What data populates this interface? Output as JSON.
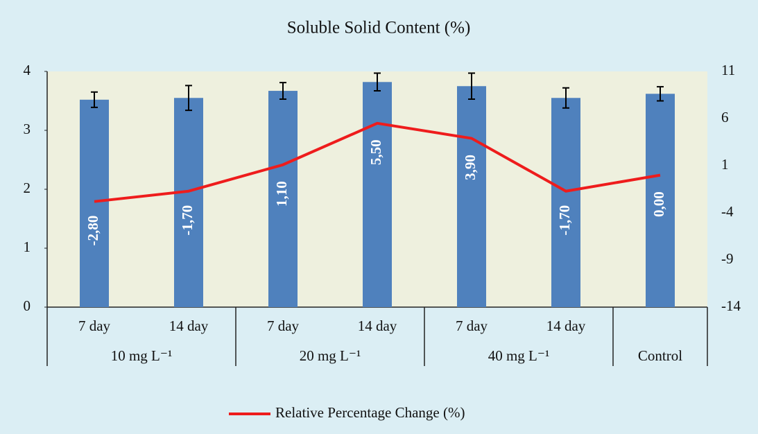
{
  "chart_data": {
    "type": "bar",
    "title": "Soluble Solid Content (%)",
    "categories": [
      "7 day",
      "14 day",
      "7 day",
      "14 day",
      "7 day",
      "14 day",
      null
    ],
    "groups": [
      {
        "label": "10 mg L⁻¹",
        "span": 2
      },
      {
        "label": "20 mg L⁻¹",
        "span": 2
      },
      {
        "label": "40 mg L⁻¹",
        "span": 2
      },
      {
        "label": "Control",
        "span": 1
      }
    ],
    "series": [
      {
        "type": "bar",
        "color": "#4f81bd",
        "values": [
          3.52,
          3.55,
          3.67,
          3.82,
          3.75,
          3.55,
          3.62
        ],
        "errors": [
          0.13,
          0.21,
          0.14,
          0.15,
          0.22,
          0.17,
          0.12
        ]
      },
      {
        "type": "line",
        "name": "Relative Percentage Change (%)",
        "color": "#ee1c1c",
        "axis": "y2",
        "values": [
          -2.8,
          -1.7,
          1.1,
          5.5,
          3.9,
          -1.7,
          0
        ],
        "value_labels": [
          "-2,80",
          "-1,70",
          "1,10",
          "5,50",
          "3,90",
          "-1,70",
          "0,00"
        ]
      }
    ],
    "ylim": [
      0,
      4
    ],
    "yticks": [
      0,
      1,
      2,
      3,
      4
    ],
    "y2lim": [
      -14,
      11
    ],
    "y2ticks": [
      -14,
      -9,
      -4,
      1,
      6,
      11
    ],
    "legend": "bottom"
  }
}
